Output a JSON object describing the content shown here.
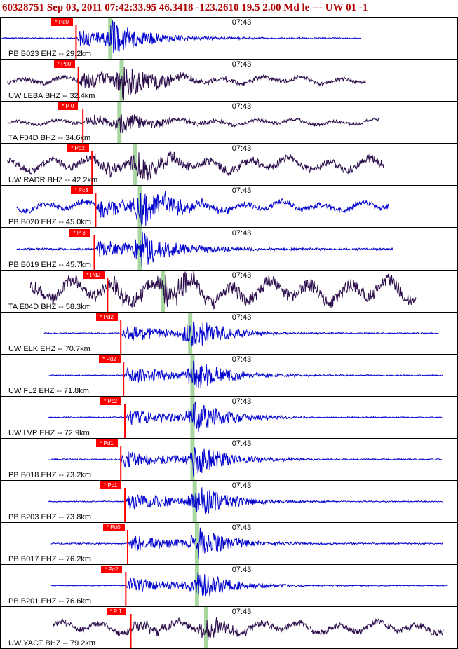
{
  "header": {
    "title": "60328751 Sep 03, 2011 07:42:33.95    46.3418 -123.2610 19.5 2.00 Md le ---  UW 01   -1"
  },
  "colors": {
    "title": "#b00000",
    "trace_blue": "#0000cc",
    "trace_purple": "#2a0b4a",
    "pick": "#ff0000",
    "s_band": "#a8d8a0"
  },
  "panels": [
    {
      "label": "PB B023 EHZ -- 29.2km",
      "time": "07:43",
      "pick": "* Pd0",
      "color": "blue",
      "pickx": 0.165,
      "sx": 0.24,
      "start": 0.0,
      "end": 0.79,
      "amp": 22,
      "noise": 1.2,
      "style": "flat"
    },
    {
      "label": "UW LEBA BHZ -- 32.4km",
      "time": "07:43",
      "pick": "* Pd0",
      "color": "purple",
      "pickx": 0.17,
      "sx": 0.265,
      "start": 0.015,
      "end": 0.8,
      "amp": 24,
      "noise": 4,
      "style": "wave"
    },
    {
      "label": "TA F04D BHZ -- 34.6km",
      "time": "07:43",
      "pick": "* P 0",
      "color": "purple",
      "pickx": 0.18,
      "sx": 0.26,
      "start": 0.015,
      "end": 0.83,
      "amp": 14,
      "noise": 3,
      "style": "wave"
    },
    {
      "label": "UW RADR BHZ -- 42.2km",
      "time": "07:43",
      "pick": "* Pd2",
      "color": "purple",
      "pickx": 0.2,
      "sx": 0.295,
      "start": 0.015,
      "end": 0.84,
      "amp": 18,
      "noise": 7,
      "style": "wave"
    },
    {
      "label": "PB B020 EHZ -- 45.0km",
      "time": "07:43",
      "pick": "* Pc3",
      "color": "blue",
      "pickx": 0.208,
      "sx": 0.305,
      "start": 0.035,
      "end": 0.85,
      "amp": 24,
      "noise": 5,
      "style": "wave"
    },
    {
      "label": "PB B019 EHZ -- 45.7km",
      "time": "07:43",
      "pick": "* P 3",
      "color": "blue",
      "pickx": 0.205,
      "sx": 0.305,
      "start": 0.035,
      "end": 0.86,
      "amp": 24,
      "noise": 2,
      "style": "flat"
    },
    {
      "label": "TA E04D BHZ -- 58.3km",
      "time": "07:43",
      "pick": "* Pd2",
      "color": "purple",
      "pickx": 0.234,
      "sx": 0.355,
      "start": 0.065,
      "end": 0.91,
      "amp": 18,
      "noise": 12,
      "style": "wave"
    },
    {
      "label": "UW ELK EHZ -- 70.7km",
      "time": "07:43",
      "pick": "* Pd2",
      "color": "blue",
      "pickx": 0.263,
      "sx": 0.415,
      "start": 0.095,
      "end": 0.96,
      "amp": 24,
      "noise": 1.2,
      "style": "flat"
    },
    {
      "label": "UW FL2 EHZ -- 71.8km",
      "time": "07:43",
      "pick": "* Pd2",
      "color": "blue",
      "pickx": 0.269,
      "sx": 0.42,
      "start": 0.105,
      "end": 0.97,
      "amp": 24,
      "noise": 1,
      "style": "flat"
    },
    {
      "label": "UW LVP EHZ -- 72.9km",
      "time": "07:43",
      "pick": "* Pc2",
      "color": "blue",
      "pickx": 0.272,
      "sx": 0.42,
      "start": 0.105,
      "end": 0.97,
      "amp": 24,
      "noise": 1,
      "style": "flat"
    },
    {
      "label": "PB B018 EHZ -- 73.2km",
      "time": "07:43",
      "pick": "* Pd1",
      "color": "blue",
      "pickx": 0.263,
      "sx": 0.42,
      "start": 0.105,
      "end": 0.97,
      "amp": 24,
      "noise": 1.3,
      "style": "flat"
    },
    {
      "label": "PB B203 EHZ -- 73.8km",
      "time": "07:43",
      "pick": "* Pc1",
      "color": "blue",
      "pickx": 0.272,
      "sx": 0.425,
      "start": 0.105,
      "end": 0.97,
      "amp": 24,
      "noise": 1,
      "style": "flat"
    },
    {
      "label": "PB B017 EHZ -- 76.2km",
      "time": "07:43",
      "pick": "* Pd0",
      "color": "blue",
      "pickx": 0.278,
      "sx": 0.43,
      "start": 0.11,
      "end": 0.97,
      "amp": 24,
      "noise": 1.3,
      "style": "flat"
    },
    {
      "label": "PB B201 EHZ -- 76.6km",
      "time": "07:43",
      "pick": "* Pc2",
      "color": "blue",
      "pickx": 0.274,
      "sx": 0.43,
      "start": 0.11,
      "end": 0.98,
      "amp": 22,
      "noise": 0.8,
      "style": "flat"
    },
    {
      "label": "UW YACT BHZ -- 79.2km",
      "time": "07:43",
      "pick": "* P 1",
      "color": "purple",
      "pickx": 0.285,
      "sx": 0.45,
      "start": 0.115,
      "end": 0.97,
      "amp": 14,
      "noise": 6,
      "style": "wave"
    }
  ]
}
